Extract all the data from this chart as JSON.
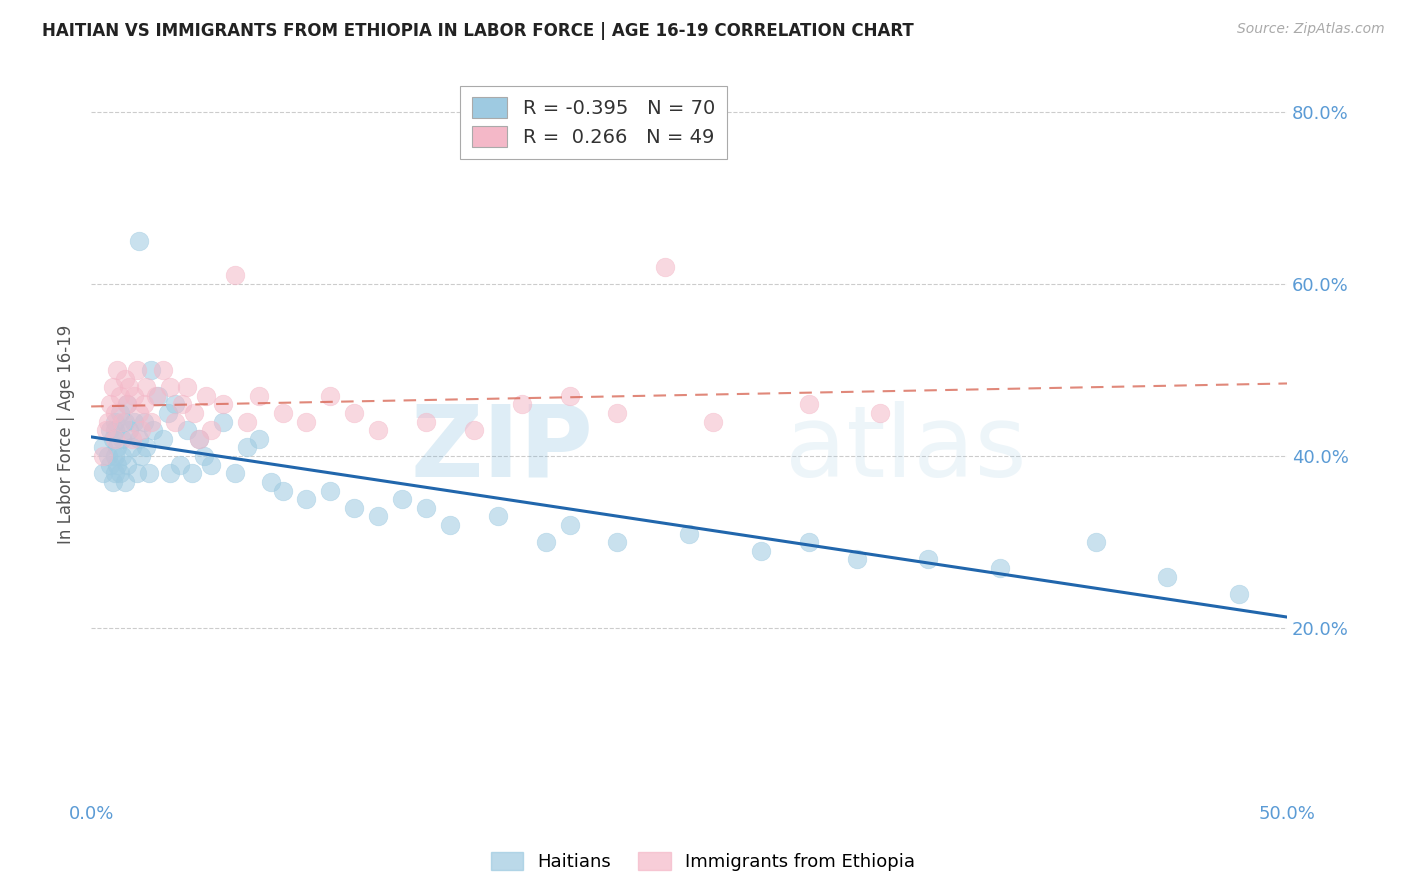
{
  "title": "HAITIAN VS IMMIGRANTS FROM ETHIOPIA IN LABOR FORCE | AGE 16-19 CORRELATION CHART",
  "source": "Source: ZipAtlas.com",
  "ylabel": "In Labor Force | Age 16-19",
  "xlim": [
    0.0,
    0.5
  ],
  "ylim": [
    0.0,
    0.85
  ],
  "yticks": [
    0.2,
    0.4,
    0.6,
    0.8
  ],
  "ytick_labels": [
    "20.0%",
    "40.0%",
    "60.0%",
    "80.0%"
  ],
  "xticks": [
    0.0,
    0.1,
    0.2,
    0.3,
    0.4,
    0.5
  ],
  "xtick_labels": [
    "0.0%",
    "",
    "",
    "",
    "",
    "50.0%"
  ],
  "legend_r1": "R = -0.395",
  "legend_n1": "N = 70",
  "legend_r2": "R =  0.266",
  "legend_n2": "N = 49",
  "watermark_zip": "ZIP",
  "watermark_atlas": "atlas",
  "blue_color": "#9ecae1",
  "pink_color": "#f4b8c8",
  "blue_line_color": "#2166ac",
  "pink_line_color": "#d6604d",
  "axis_label_color": "#5b9bd5",
  "background_color": "#ffffff",
  "haitian_x": [
    0.005,
    0.005,
    0.007,
    0.008,
    0.008,
    0.009,
    0.009,
    0.01,
    0.01,
    0.01,
    0.01,
    0.011,
    0.011,
    0.012,
    0.012,
    0.013,
    0.013,
    0.014,
    0.014,
    0.015,
    0.015,
    0.016,
    0.017,
    0.018,
    0.019,
    0.02,
    0.02,
    0.021,
    0.022,
    0.023,
    0.024,
    0.025,
    0.026,
    0.028,
    0.03,
    0.032,
    0.033,
    0.035,
    0.037,
    0.04,
    0.042,
    0.045,
    0.047,
    0.05,
    0.055,
    0.06,
    0.065,
    0.07,
    0.075,
    0.08,
    0.09,
    0.1,
    0.11,
    0.12,
    0.13,
    0.14,
    0.15,
    0.17,
    0.19,
    0.2,
    0.22,
    0.25,
    0.28,
    0.3,
    0.32,
    0.35,
    0.38,
    0.42,
    0.45,
    0.48
  ],
  "haitian_y": [
    0.41,
    0.38,
    0.4,
    0.43,
    0.39,
    0.42,
    0.37,
    0.44,
    0.4,
    0.38,
    0.43,
    0.41,
    0.39,
    0.45,
    0.38,
    0.42,
    0.4,
    0.44,
    0.37,
    0.46,
    0.39,
    0.43,
    0.41,
    0.44,
    0.38,
    0.65,
    0.42,
    0.4,
    0.44,
    0.41,
    0.38,
    0.5,
    0.43,
    0.47,
    0.42,
    0.45,
    0.38,
    0.46,
    0.39,
    0.43,
    0.38,
    0.42,
    0.4,
    0.39,
    0.44,
    0.38,
    0.41,
    0.42,
    0.37,
    0.36,
    0.35,
    0.36,
    0.34,
    0.33,
    0.35,
    0.34,
    0.32,
    0.33,
    0.3,
    0.32,
    0.3,
    0.31,
    0.29,
    0.3,
    0.28,
    0.28,
    0.27,
    0.3,
    0.26,
    0.24
  ],
  "ethiopia_x": [
    0.005,
    0.006,
    0.007,
    0.008,
    0.009,
    0.01,
    0.01,
    0.011,
    0.012,
    0.013,
    0.014,
    0.015,
    0.016,
    0.017,
    0.018,
    0.019,
    0.02,
    0.021,
    0.022,
    0.023,
    0.025,
    0.027,
    0.03,
    0.033,
    0.035,
    0.038,
    0.04,
    0.043,
    0.045,
    0.048,
    0.05,
    0.055,
    0.06,
    0.065,
    0.07,
    0.08,
    0.09,
    0.1,
    0.11,
    0.12,
    0.14,
    0.16,
    0.18,
    0.2,
    0.22,
    0.24,
    0.26,
    0.3,
    0.33
  ],
  "ethiopia_y": [
    0.4,
    0.43,
    0.44,
    0.46,
    0.48,
    0.42,
    0.45,
    0.5,
    0.47,
    0.44,
    0.49,
    0.46,
    0.48,
    0.42,
    0.47,
    0.5,
    0.45,
    0.43,
    0.46,
    0.48,
    0.44,
    0.47,
    0.5,
    0.48,
    0.44,
    0.46,
    0.48,
    0.45,
    0.42,
    0.47,
    0.43,
    0.46,
    0.61,
    0.44,
    0.47,
    0.45,
    0.44,
    0.47,
    0.45,
    0.43,
    0.44,
    0.43,
    0.46,
    0.47,
    0.45,
    0.62,
    0.44,
    0.46,
    0.45
  ]
}
